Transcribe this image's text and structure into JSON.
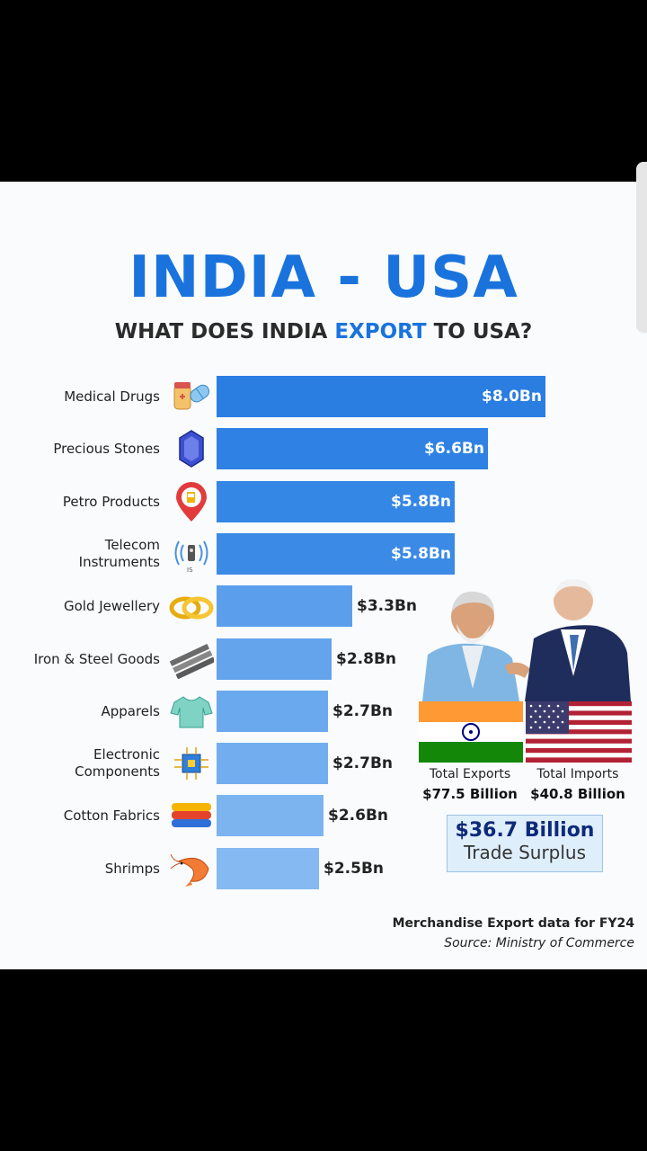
{
  "header": {
    "title": "INDIA - USA",
    "subtitle_pre": "WHAT DOES INDIA ",
    "subtitle_hl": "EXPORT",
    "subtitle_post": " TO USA?"
  },
  "chart_data": {
    "type": "bar",
    "orientation": "horizontal",
    "categories": [
      "Medical Drugs",
      "Precious Stones",
      "Petro Products",
      "Telecom Instruments",
      "Gold Jewellery",
      "Iron & Steel Goods",
      "Apparels",
      "Electronic Components",
      "Cotton Fabrics",
      "Shrimps"
    ],
    "values": [
      8.0,
      6.6,
      5.8,
      5.8,
      3.3,
      2.8,
      2.7,
      2.7,
      2.6,
      2.5
    ],
    "value_labels": [
      "$8.0Bn",
      "$6.6Bn",
      "$5.8Bn",
      "$5.8Bn",
      "$3.3Bn",
      "$2.8Bn",
      "$2.7Bn",
      "$2.7Bn",
      "$2.6Bn",
      "$2.5Bn"
    ],
    "icons": [
      "pills-icon",
      "gemstone-icon",
      "fuel-pin-icon",
      "telecom-signal-icon",
      "gold-rings-icon",
      "steel-bars-icon",
      "shirt-icon",
      "chip-icon",
      "fabric-stack-icon",
      "shrimp-icon"
    ],
    "bar_colors": [
      "#2a7de1",
      "#2f82e3",
      "#3587e5",
      "#3a8ae6",
      "#5b9fec",
      "#63a4ed",
      "#6aa9ee",
      "#72aeef",
      "#7cb4f0",
      "#84b9f1"
    ],
    "unit": "$Bn",
    "xlim": [
      0,
      8.0
    ],
    "title": "INDIA - USA",
    "subtitle": "WHAT DOES INDIA EXPORT TO USA?"
  },
  "stats": {
    "exports_label": "Total Exports",
    "exports_value": "$77.5 Billion",
    "imports_label": "Total Imports",
    "imports_value": "$40.8 Billion",
    "surplus_value": "$36.7 Billion",
    "surplus_label": "Trade Surplus"
  },
  "footer": {
    "note": "Merchandise Export data for FY24",
    "source": "Source: Ministry of Commerce"
  },
  "colors": {
    "accent": "#1a73dd",
    "background": "#f9fbfd",
    "india_saffron": "#ff9933",
    "india_green": "#138808",
    "us_red": "#b22234",
    "us_blue": "#3c3b6e"
  }
}
